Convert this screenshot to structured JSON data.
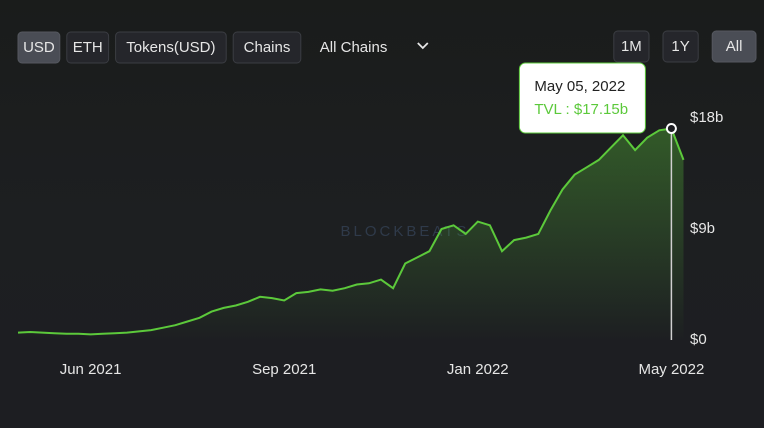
{
  "controls": {
    "currency": [
      "USD",
      "ETH",
      "Tokens(USD)",
      "Chains"
    ],
    "active_currency": "USD",
    "chain_select": "All Chains",
    "ranges": [
      "1M",
      "1Y",
      "All"
    ],
    "active_range": "All"
  },
  "watermark": "BLOCKBEATS",
  "chart_data": {
    "type": "area",
    "color": "#5cc93b",
    "categories": [
      null,
      null,
      null,
      null,
      null,
      null,
      "Jun 2021",
      null,
      null,
      null,
      null,
      null,
      null,
      null,
      null,
      null,
      null,
      null,
      null,
      null,
      null,
      null,
      "Sep 2021",
      null,
      null,
      null,
      null,
      null,
      null,
      null,
      null,
      null,
      null,
      null,
      null,
      null,
      null,
      null,
      "Jan 2022",
      null,
      null,
      null,
      null,
      null,
      null,
      null,
      null,
      null,
      null,
      null,
      null,
      null,
      null,
      null,
      "May 2022",
      null
    ],
    "values": [
      0.6,
      0.65,
      0.6,
      0.55,
      0.5,
      0.5,
      0.45,
      0.5,
      0.55,
      0.6,
      0.7,
      0.8,
      1.0,
      1.2,
      1.5,
      1.8,
      2.3,
      2.6,
      2.8,
      3.1,
      3.5,
      3.4,
      3.2,
      3.8,
      3.9,
      4.1,
      4.0,
      4.2,
      4.5,
      4.6,
      4.9,
      4.2,
      6.2,
      6.7,
      7.2,
      9.0,
      9.3,
      8.6,
      9.6,
      9.3,
      7.2,
      8.1,
      8.3,
      8.6,
      10.5,
      12.2,
      13.4,
      14.0,
      14.6,
      15.6,
      16.6,
      15.4,
      16.4,
      17.0,
      17.15,
      14.6
    ],
    "ylim": [
      0,
      18
    ],
    "yticks": [
      {
        "value": 0,
        "label": "$0"
      },
      {
        "value": 9,
        "label": "$9b"
      },
      {
        "value": 18,
        "label": "$18b"
      }
    ],
    "tooltip": {
      "date": "May 05, 2022",
      "label": "TVL : $17.15b",
      "value": 17.15
    }
  }
}
